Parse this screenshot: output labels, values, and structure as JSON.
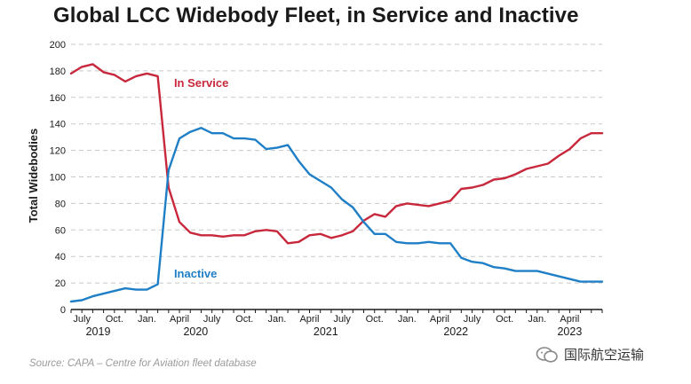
{
  "chart_data": {
    "type": "line",
    "title": "Global LCC Widebody Fleet, in Service and Inactive",
    "ylabel": "Total Widebodies",
    "xlabel": "",
    "ylim": [
      0,
      200
    ],
    "yticks": [
      0,
      20,
      40,
      60,
      80,
      100,
      120,
      140,
      160,
      180,
      200
    ],
    "grid": true,
    "x_start": "2019-05",
    "x": [
      0,
      1,
      2,
      3,
      4,
      5,
      6,
      7,
      8,
      9,
      10,
      11,
      12,
      13,
      14,
      15,
      16,
      17,
      18,
      19,
      20,
      21,
      22,
      23,
      24,
      25,
      26,
      27,
      28,
      29,
      30,
      31,
      32,
      33,
      34,
      35,
      36,
      37,
      38,
      39,
      40,
      41,
      42,
      43,
      44,
      45,
      46,
      47,
      48,
      49
    ],
    "x_ticks": [
      {
        "x": 1,
        "label": "July"
      },
      {
        "x": 4,
        "label": "Oct."
      },
      {
        "x": 7,
        "label": "Jan."
      },
      {
        "x": 10,
        "label": "April"
      },
      {
        "x": 13,
        "label": "July"
      },
      {
        "x": 16,
        "label": "Oct."
      },
      {
        "x": 19,
        "label": "Jan."
      },
      {
        "x": 22,
        "label": "April"
      },
      {
        "x": 25,
        "label": "July"
      },
      {
        "x": 28,
        "label": "Oct."
      },
      {
        "x": 31,
        "label": "Jan."
      },
      {
        "x": 34,
        "label": "April"
      },
      {
        "x": 37,
        "label": "July"
      },
      {
        "x": 40,
        "label": "Oct."
      },
      {
        "x": 43,
        "label": "Jan."
      },
      {
        "x": 46,
        "label": "April"
      }
    ],
    "year_labels": [
      {
        "x": 2.5,
        "label": "2019"
      },
      {
        "x": 11.5,
        "label": "2020"
      },
      {
        "x": 23.5,
        "label": "2021"
      },
      {
        "x": 35.5,
        "label": "2022"
      },
      {
        "x": 46,
        "label": "2023"
      }
    ],
    "series": [
      {
        "name": "In Service",
        "color": "#c8283c",
        "label_x": 9.5,
        "label_y": 168,
        "values": [
          178,
          183,
          185,
          179,
          177,
          172,
          176,
          178,
          176,
          92,
          66,
          58,
          56,
          56,
          55,
          56,
          56,
          59,
          60,
          59,
          50,
          51,
          56,
          57,
          54,
          56,
          59,
          67,
          72,
          70,
          78,
          80,
          79,
          78,
          80,
          82,
          91,
          92,
          94,
          98,
          99,
          102,
          106,
          108,
          110,
          116,
          121,
          129,
          133,
          133
        ]
      },
      {
        "name": "Inactive",
        "color": "#1f7fc6",
        "label_x": 9.5,
        "label_y": 24,
        "values": [
          6,
          7,
          10,
          12,
          14,
          16,
          15,
          15,
          19,
          105,
          129,
          134,
          137,
          133,
          133,
          129,
          129,
          128,
          121,
          122,
          124,
          112,
          102,
          97,
          92,
          83,
          77,
          66,
          57,
          57,
          51,
          50,
          50,
          51,
          50,
          50,
          39,
          36,
          35,
          32,
          31,
          29,
          29,
          29,
          27,
          25,
          23,
          21,
          21,
          21
        ]
      }
    ]
  },
  "source": "Source: CAPA – Centre for Aviation fleet database",
  "watermark": "国际航空运输"
}
